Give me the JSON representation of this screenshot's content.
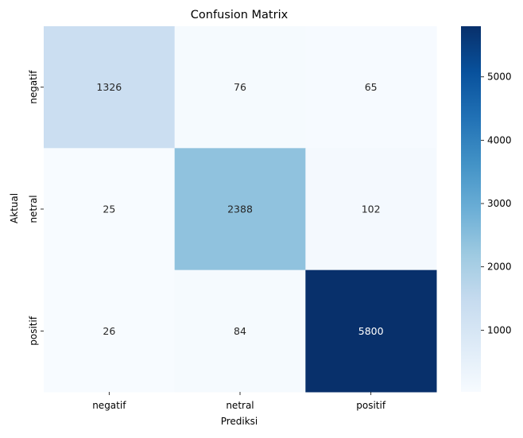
{
  "chart_data": {
    "type": "heatmap",
    "title": "Confusion Matrix",
    "xlabel": "Prediksi",
    "ylabel": "Aktual",
    "x_categories": [
      "negatif",
      "netral",
      "positif"
    ],
    "y_categories": [
      "negatif",
      "netral",
      "positif"
    ],
    "values": [
      [
        1326,
        76,
        65
      ],
      [
        25,
        2388,
        102
      ],
      [
        26,
        84,
        5800
      ]
    ],
    "colormap": "Blues",
    "color_range": [
      25,
      5800
    ],
    "colorbar_ticks": [
      1000,
      2000,
      3000,
      4000,
      5000
    ],
    "grid": false
  }
}
